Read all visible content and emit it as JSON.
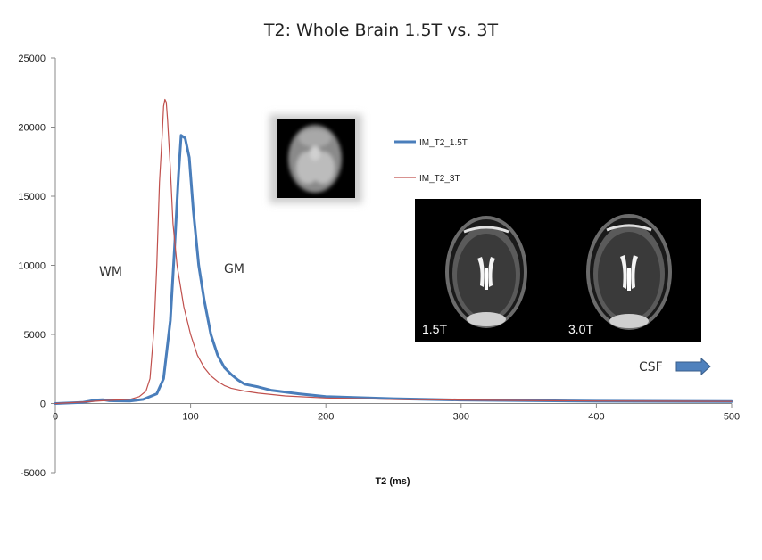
{
  "chart_data": {
    "type": "line",
    "title": "T2: Whole Brain 1.5T vs. 3T",
    "xlabel": "T2 (ms)",
    "ylabel": "",
    "xlim": [
      0,
      500
    ],
    "ylim": [
      -5000,
      25000
    ],
    "x_ticks": [
      0,
      100,
      200,
      300,
      400,
      500
    ],
    "y_ticks": [
      -5000,
      0,
      5000,
      10000,
      15000,
      20000,
      25000
    ],
    "grid": false,
    "legend_position": "right",
    "series": [
      {
        "name": "IM_T2_1.5T",
        "color": "#4a7ebb",
        "points": [
          [
            0,
            0
          ],
          [
            20,
            80
          ],
          [
            30,
            250
          ],
          [
            35,
            280
          ],
          [
            40,
            200
          ],
          [
            55,
            180
          ],
          [
            65,
            300
          ],
          [
            75,
            700
          ],
          [
            80,
            1800
          ],
          [
            85,
            6000
          ],
          [
            88,
            11000
          ],
          [
            91,
            16500
          ],
          [
            93,
            19400
          ],
          [
            96,
            19200
          ],
          [
            99,
            17800
          ],
          [
            102,
            14000
          ],
          [
            106,
            10000
          ],
          [
            110,
            7500
          ],
          [
            115,
            5000
          ],
          [
            120,
            3500
          ],
          [
            125,
            2600
          ],
          [
            130,
            2100
          ],
          [
            135,
            1700
          ],
          [
            140,
            1400
          ],
          [
            150,
            1200
          ],
          [
            160,
            950
          ],
          [
            180,
            700
          ],
          [
            200,
            500
          ],
          [
            250,
            350
          ],
          [
            300,
            250
          ],
          [
            400,
            170
          ],
          [
            500,
            150
          ]
        ]
      },
      {
        "name": "IM_T2_3T",
        "color": "#c0504d",
        "points": [
          [
            0,
            0
          ],
          [
            20,
            100
          ],
          [
            35,
            200
          ],
          [
            45,
            250
          ],
          [
            55,
            300
          ],
          [
            62,
            500
          ],
          [
            67,
            900
          ],
          [
            70,
            1800
          ],
          [
            73,
            5500
          ],
          [
            75,
            10000
          ],
          [
            77,
            16000
          ],
          [
            79,
            19500
          ],
          [
            80,
            21500
          ],
          [
            81,
            22000
          ],
          [
            82,
            21800
          ],
          [
            83,
            20500
          ],
          [
            85,
            17000
          ],
          [
            87,
            13000
          ],
          [
            90,
            10000
          ],
          [
            95,
            7000
          ],
          [
            100,
            5000
          ],
          [
            105,
            3500
          ],
          [
            110,
            2600
          ],
          [
            115,
            2000
          ],
          [
            120,
            1600
          ],
          [
            125,
            1300
          ],
          [
            130,
            1100
          ],
          [
            140,
            900
          ],
          [
            150,
            750
          ],
          [
            170,
            550
          ],
          [
            200,
            400
          ],
          [
            250,
            300
          ],
          [
            300,
            250
          ],
          [
            400,
            180
          ],
          [
            500,
            150
          ]
        ]
      }
    ],
    "annotations": [
      "WM",
      "GM",
      "CSF"
    ]
  },
  "mri_labels": {
    "left": "1.5T",
    "right": "3.0T"
  }
}
